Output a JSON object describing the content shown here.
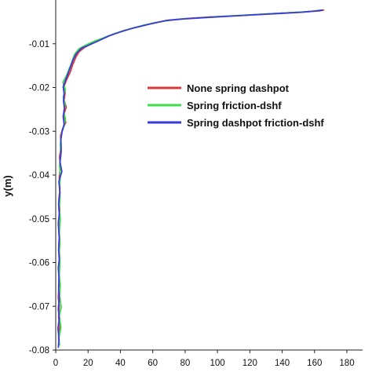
{
  "chart_data": {
    "type": "line",
    "title": "",
    "xlabel": "",
    "ylabel": "y(m)",
    "xlim": [
      0,
      180
    ],
    "ylim": [
      -0.08,
      0.0
    ],
    "xticks": [
      "0",
      "20",
      "40",
      "60",
      "80",
      "100",
      "120",
      "140",
      "160",
      "180"
    ],
    "yticks": [
      "-0.01",
      "-0.02",
      "-0.03",
      "-0.04",
      "-0.05",
      "-0.06",
      "-0.07",
      "-0.08"
    ],
    "ytick_values": [
      -0.01,
      -0.02,
      -0.03,
      -0.04,
      -0.05,
      -0.06,
      -0.07,
      -0.08
    ],
    "grid": false,
    "legend_position": "center-right",
    "series": [
      {
        "name": "None spring dashpot",
        "color": "#d93a3a",
        "points": [
          [
            2.0,
            -0.079
          ],
          [
            1.8,
            -0.077
          ],
          [
            2.5,
            -0.0745
          ],
          [
            1.8,
            -0.0725
          ],
          [
            2.2,
            -0.07
          ],
          [
            1.6,
            -0.068
          ],
          [
            2.0,
            -0.0655
          ],
          [
            2.3,
            -0.063
          ],
          [
            1.8,
            -0.061
          ],
          [
            2.4,
            -0.0585
          ],
          [
            2.0,
            -0.056
          ],
          [
            2.3,
            -0.053
          ],
          [
            1.8,
            -0.0505
          ],
          [
            2.5,
            -0.048
          ],
          [
            2.0,
            -0.0455
          ],
          [
            2.6,
            -0.043
          ],
          [
            2.2,
            -0.0405
          ],
          [
            3.0,
            -0.038
          ],
          [
            2.4,
            -0.036
          ],
          [
            3.2,
            -0.0335
          ],
          [
            3.0,
            -0.031
          ],
          [
            4.2,
            -0.0295
          ],
          [
            6.2,
            -0.028
          ],
          [
            5.0,
            -0.0262
          ],
          [
            6.5,
            -0.0245
          ],
          [
            5.2,
            -0.0228
          ],
          [
            5.8,
            -0.0212
          ],
          [
            5.4,
            -0.0195
          ],
          [
            7.0,
            -0.018
          ],
          [
            9.0,
            -0.0165
          ],
          [
            10.5,
            -0.0148
          ],
          [
            12.5,
            -0.013
          ],
          [
            14.5,
            -0.0118
          ],
          [
            18.0,
            -0.0108
          ],
          [
            22.0,
            -0.01
          ],
          [
            28.0,
            -0.009
          ],
          [
            35.0,
            -0.0079
          ],
          [
            42.0,
            -0.007
          ],
          [
            50.0,
            -0.0062
          ],
          [
            60.0,
            -0.0053
          ],
          [
            70.0,
            -0.0046
          ],
          [
            82.0,
            -0.0042
          ],
          [
            95.0,
            -0.0039
          ],
          [
            110.0,
            -0.0036
          ],
          [
            125.0,
            -0.0033
          ],
          [
            140.0,
            -0.003
          ],
          [
            155.0,
            -0.0027
          ],
          [
            163.0,
            -0.0025
          ],
          [
            166.0,
            -0.0023
          ]
        ]
      },
      {
        "name": "Spring friction-dshf",
        "color": "#3ddc4a",
        "points": [
          [
            2.4,
            -0.079
          ],
          [
            2.0,
            -0.0772
          ],
          [
            3.2,
            -0.0748
          ],
          [
            2.2,
            -0.0722
          ],
          [
            3.4,
            -0.0702
          ],
          [
            2.4,
            -0.0676
          ],
          [
            2.8,
            -0.0652
          ],
          [
            2.2,
            -0.063
          ],
          [
            2.6,
            -0.06
          ],
          [
            2.2,
            -0.0575
          ],
          [
            2.6,
            -0.0555
          ],
          [
            2.2,
            -0.053
          ],
          [
            2.8,
            -0.05
          ],
          [
            2.2,
            -0.0478
          ],
          [
            2.6,
            -0.0452
          ],
          [
            2.4,
            -0.043
          ],
          [
            2.8,
            -0.0402
          ],
          [
            2.4,
            -0.0378
          ],
          [
            3.2,
            -0.0355
          ],
          [
            2.8,
            -0.033
          ],
          [
            3.6,
            -0.0305
          ],
          [
            5.0,
            -0.029
          ],
          [
            6.0,
            -0.0272
          ],
          [
            5.0,
            -0.0255
          ],
          [
            5.8,
            -0.0238
          ],
          [
            4.6,
            -0.0222
          ],
          [
            6.0,
            -0.0205
          ],
          [
            4.4,
            -0.0188
          ],
          [
            6.8,
            -0.0172
          ],
          [
            8.2,
            -0.0158
          ],
          [
            10.0,
            -0.0142
          ],
          [
            11.5,
            -0.0125
          ],
          [
            14.2,
            -0.0112
          ],
          [
            19.0,
            -0.0102
          ],
          [
            24.0,
            -0.0094
          ],
          [
            30.0,
            -0.0086
          ],
          [
            37.0,
            -0.0076
          ],
          [
            45.0,
            -0.0067
          ],
          [
            54.0,
            -0.0058
          ],
          [
            64.0,
            -0.005
          ],
          [
            75.0,
            -0.0044
          ],
          [
            88.0,
            -0.0041
          ],
          [
            100.0,
            -0.0038
          ],
          [
            115.0,
            -0.0035
          ],
          [
            130.0,
            -0.0032
          ],
          [
            145.0,
            -0.0029
          ],
          [
            158.0,
            -0.0026
          ],
          [
            165.0,
            -0.0023
          ]
        ]
      },
      {
        "name": "Spring dashpot friction-dshf",
        "color": "#3a3ad9",
        "points": [
          [
            1.6,
            -0.0795
          ],
          [
            2.0,
            -0.0775
          ],
          [
            1.4,
            -0.075
          ],
          [
            2.2,
            -0.0728
          ],
          [
            1.6,
            -0.0706
          ],
          [
            2.2,
            -0.0684
          ],
          [
            1.8,
            -0.066
          ],
          [
            2.0,
            -0.0635
          ],
          [
            1.6,
            -0.0612
          ],
          [
            2.2,
            -0.0595
          ],
          [
            1.8,
            -0.057
          ],
          [
            2.2,
            -0.0545
          ],
          [
            1.6,
            -0.051
          ],
          [
            2.2,
            -0.049
          ],
          [
            1.8,
            -0.0465
          ],
          [
            2.6,
            -0.044
          ],
          [
            2.0,
            -0.0415
          ],
          [
            3.8,
            -0.0392
          ],
          [
            2.6,
            -0.037
          ],
          [
            3.4,
            -0.0345
          ],
          [
            3.2,
            -0.0318
          ],
          [
            4.0,
            -0.03
          ],
          [
            5.2,
            -0.0284
          ],
          [
            4.6,
            -0.0266
          ],
          [
            5.4,
            -0.0248
          ],
          [
            4.8,
            -0.023
          ],
          [
            5.2,
            -0.0214
          ],
          [
            4.6,
            -0.0198
          ],
          [
            6.2,
            -0.0182
          ],
          [
            7.6,
            -0.0168
          ],
          [
            9.2,
            -0.0152
          ],
          [
            10.8,
            -0.0136
          ],
          [
            12.8,
            -0.0122
          ],
          [
            16.0,
            -0.011
          ],
          [
            20.5,
            -0.0103
          ],
          [
            26.0,
            -0.0094
          ],
          [
            33.0,
            -0.0082
          ],
          [
            40.0,
            -0.0073
          ],
          [
            48.0,
            -0.0064
          ],
          [
            58.0,
            -0.0055
          ],
          [
            68.0,
            -0.0047
          ],
          [
            80.0,
            -0.0043
          ],
          [
            93.0,
            -0.004
          ],
          [
            108.0,
            -0.0037
          ],
          [
            122.0,
            -0.0034
          ],
          [
            137.0,
            -0.0031
          ],
          [
            152.0,
            -0.0028
          ],
          [
            161.0,
            -0.0025
          ],
          [
            165.0,
            -0.0023
          ]
        ]
      }
    ]
  }
}
